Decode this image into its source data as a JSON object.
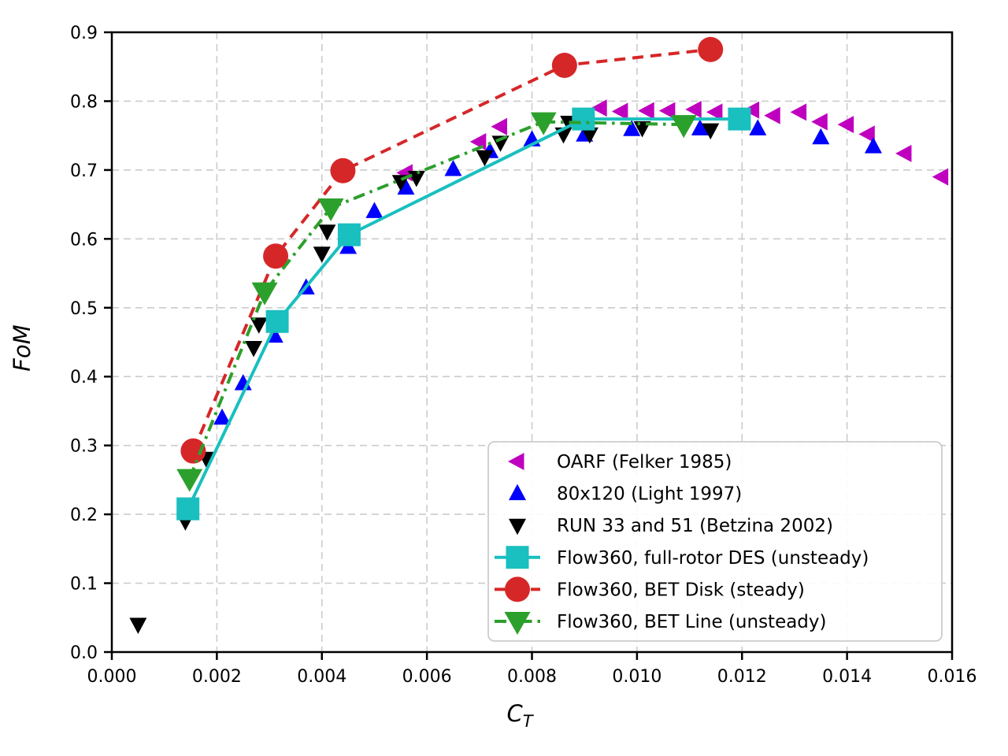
{
  "chart_data": {
    "type": "scatter",
    "title": "",
    "xlabel": {
      "base": "C",
      "subscript": "T"
    },
    "ylabel": "FoM",
    "xlim": [
      0,
      0.016
    ],
    "ylim": [
      0.0,
      0.9
    ],
    "x_ticks": {
      "values": [
        0,
        0.002,
        0.004,
        0.006,
        0.008,
        0.01,
        0.012,
        0.014,
        0.016
      ],
      "labels": [
        "0.000",
        "0.002",
        "0.004",
        "0.006",
        "0.008",
        "0.010",
        "0.012",
        "0.014",
        "0.016"
      ]
    },
    "y_ticks": {
      "values": [
        0.0,
        0.1,
        0.2,
        0.3,
        0.4,
        0.5,
        0.6,
        0.7,
        0.8,
        0.9
      ],
      "labels": [
        "0.0",
        "0.1",
        "0.2",
        "0.3",
        "0.4",
        "0.5",
        "0.6",
        "0.7",
        "0.8",
        "0.9"
      ]
    },
    "grid": {
      "visible": true,
      "style": "dashed",
      "color": "#cccccc"
    },
    "spine_color": "#000000",
    "legend": {
      "location": "lower-right-inside"
    },
    "series": [
      {
        "name": "OARF (Felker 1985)",
        "role": "experiment",
        "marker": "triangle-left",
        "color": "#bf00bf",
        "line": "none",
        "points": [
          [
            0.0056,
            0.696
          ],
          [
            0.007,
            0.741
          ],
          [
            0.0074,
            0.763
          ],
          [
            0.0093,
            0.79
          ],
          [
            0.0097,
            0.785
          ],
          [
            0.0102,
            0.786
          ],
          [
            0.0106,
            0.786
          ],
          [
            0.0111,
            0.788
          ],
          [
            0.0115,
            0.784
          ],
          [
            0.0122,
            0.787
          ],
          [
            0.0126,
            0.779
          ],
          [
            0.0131,
            0.784
          ],
          [
            0.0135,
            0.77
          ],
          [
            0.014,
            0.766
          ],
          [
            0.0144,
            0.752
          ],
          [
            0.0151,
            0.724
          ],
          [
            0.0158,
            0.69
          ]
        ]
      },
      {
        "name": "80x120 (Light 1997)",
        "role": "experiment",
        "marker": "triangle-up",
        "color": "#0000ff",
        "line": "none",
        "points": [
          [
            0.0021,
            0.34
          ],
          [
            0.0025,
            0.39
          ],
          [
            0.0031,
            0.459
          ],
          [
            0.0037,
            0.529
          ],
          [
            0.0045,
            0.588
          ],
          [
            0.005,
            0.64
          ],
          [
            0.0056,
            0.674
          ],
          [
            0.0065,
            0.701
          ],
          [
            0.0072,
            0.727
          ],
          [
            0.008,
            0.744
          ],
          [
            0.009,
            0.751
          ],
          [
            0.0099,
            0.759
          ],
          [
            0.0112,
            0.76
          ],
          [
            0.0123,
            0.76
          ],
          [
            0.0135,
            0.747
          ],
          [
            0.0145,
            0.734
          ]
        ]
      },
      {
        "name": "RUN 33 and 51 (Betzina 2002)",
        "role": "experiment",
        "marker": "triangle-down",
        "color": "#000000",
        "line": "none",
        "points": [
          [
            0.0005,
            0.04
          ],
          [
            0.0014,
            0.19
          ],
          [
            0.0018,
            0.281
          ],
          [
            0.0027,
            0.442
          ],
          [
            0.0028,
            0.476
          ],
          [
            0.004,
            0.579
          ],
          [
            0.0041,
            0.611
          ],
          [
            0.0055,
            0.683
          ],
          [
            0.0058,
            0.689
          ],
          [
            0.0071,
            0.719
          ],
          [
            0.0074,
            0.74
          ],
          [
            0.0086,
            0.752
          ],
          [
            0.0087,
            0.769
          ],
          [
            0.0091,
            0.752
          ],
          [
            0.0101,
            0.761
          ],
          [
            0.0114,
            0.758
          ]
        ]
      },
      {
        "name": "Flow360, full-rotor DES (unsteady)",
        "role": "simulation",
        "marker": "square",
        "color": "#1abfbf",
        "line": "solid",
        "points": [
          [
            0.00145,
            0.208
          ],
          [
            0.00315,
            0.48
          ],
          [
            0.00452,
            0.606
          ],
          [
            0.00898,
            0.774
          ],
          [
            0.01195,
            0.774
          ]
        ]
      },
      {
        "name": "Flow360, BET Disk (steady)",
        "role": "simulation",
        "marker": "circle",
        "color": "#d62728",
        "line": "dashed",
        "points": [
          [
            0.00155,
            0.292
          ],
          [
            0.00312,
            0.575
          ],
          [
            0.0044,
            0.699
          ],
          [
            0.00862,
            0.852
          ],
          [
            0.0114,
            0.875
          ]
        ]
      },
      {
        "name": "Flow360, BET Line (unsteady)",
        "role": "simulation",
        "marker": "triangle-down",
        "color": "#2ca02c",
        "line": "dashdot",
        "points": [
          [
            0.00148,
            0.252
          ],
          [
            0.00291,
            0.523
          ],
          [
            0.00417,
            0.645
          ],
          [
            0.00822,
            0.77
          ],
          [
            0.01089,
            0.766
          ]
        ]
      }
    ]
  }
}
